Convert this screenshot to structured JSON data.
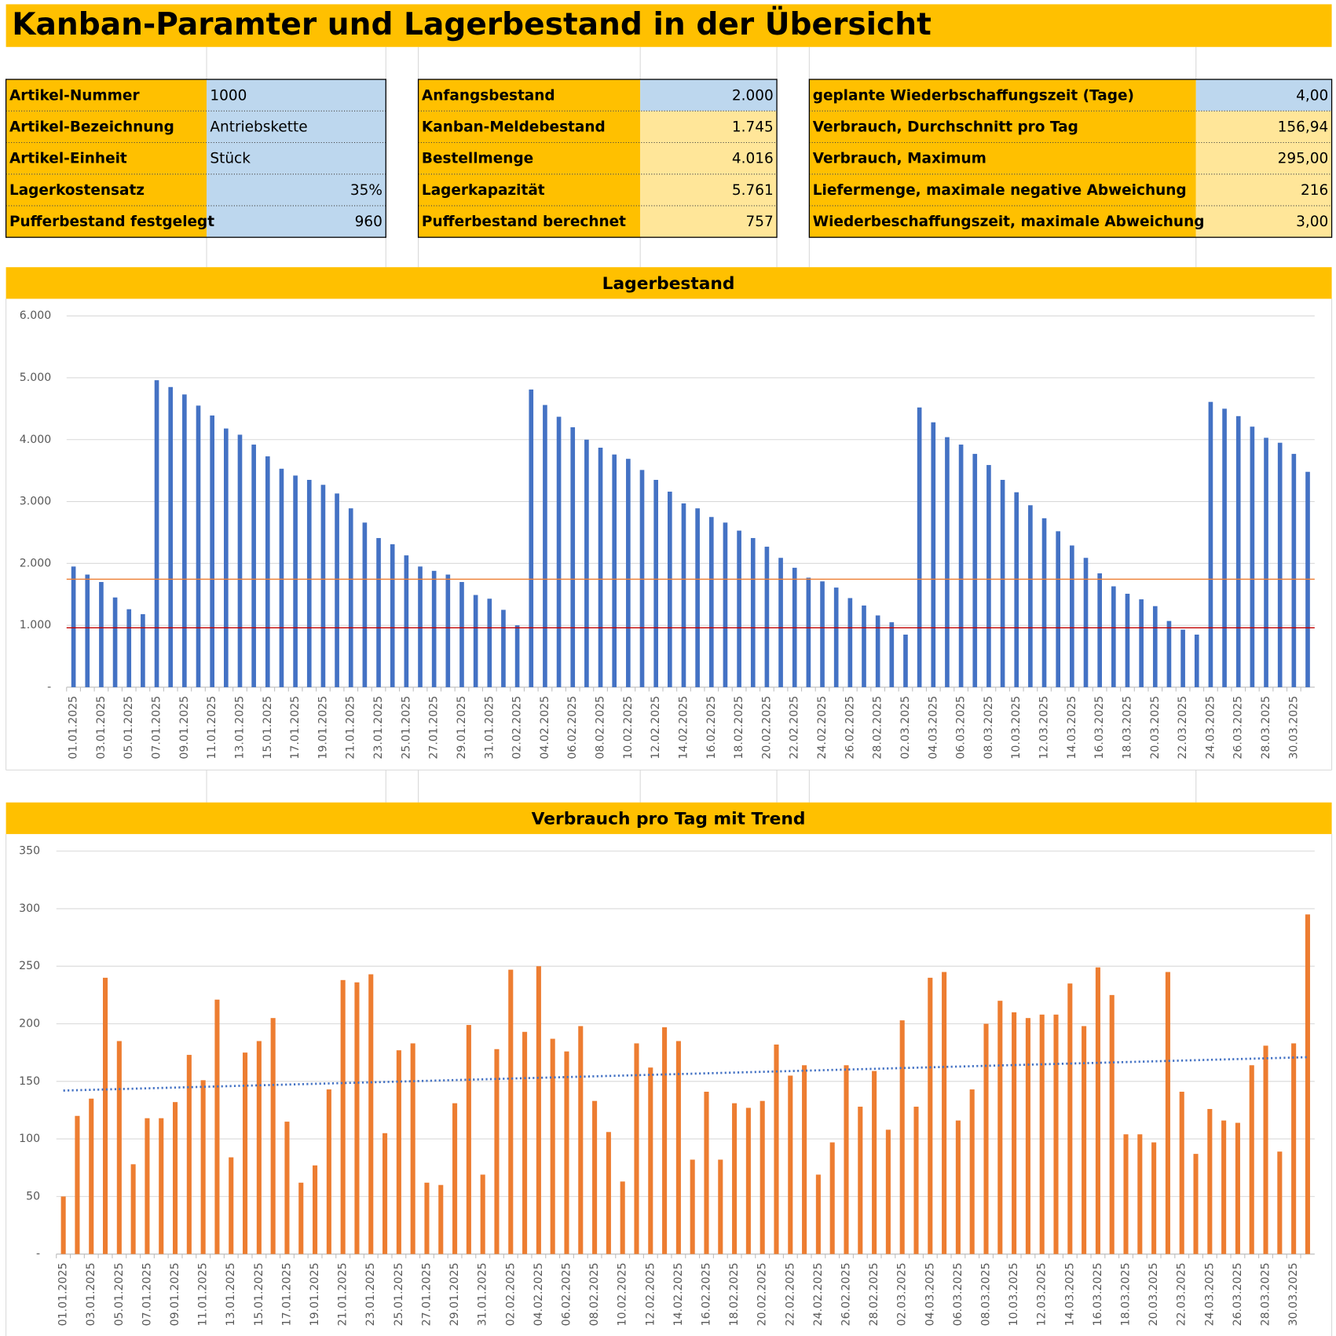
{
  "header": {
    "title": "Kanban-Paramter und Lagerbestand in der Übersicht"
  },
  "table": {
    "blocks": [
      {
        "rows": [
          {
            "label": "Artikel-Nummer",
            "value": "1000"
          },
          {
            "label": "Artikel-Bezeichnung",
            "value": "Antriebskette"
          },
          {
            "label": "Artikel-Einheit",
            "value": "Stück"
          },
          {
            "label": "Lagerkostensatz",
            "value": "35%"
          },
          {
            "label": "Pufferbestand festgelegt",
            "value": "960"
          }
        ]
      },
      {
        "rows": [
          {
            "label": "Anfangsbestand",
            "value": "2.000"
          },
          {
            "label": "Kanban-Meldebestand",
            "value": "1.745"
          },
          {
            "label": "Bestellmenge",
            "value": "4.016"
          },
          {
            "label": "Lagerkapazität",
            "value": "5.761"
          },
          {
            "label": "Pufferbestand berechnet",
            "value": "757"
          }
        ]
      },
      {
        "rows": [
          {
            "label": "geplante Wiederbschaffungszeit (Tage)",
            "value": "4,00"
          },
          {
            "label": "Verbrauch, Durchschnitt pro Tag",
            "value": "156,94"
          },
          {
            "label": "Verbrauch, Maximum",
            "value": "295,00"
          },
          {
            "label": "Liefermenge, maximale negative Abweichung",
            "value": "216"
          },
          {
            "label": "Wiederbeschaffungszeit, maximale Abweichung",
            "value": "3,00"
          }
        ]
      }
    ]
  },
  "chart_data": [
    {
      "type": "bar",
      "title": "Lagerbestand",
      "color": "#4472c4",
      "categories": [
        "01.01.2025",
        null,
        "03.01.2025",
        null,
        "05.01.2025",
        null,
        "07.01.2025",
        null,
        "09.01.2025",
        null,
        "11.01.2025",
        null,
        "13.01.2025",
        null,
        "15.01.2025",
        null,
        "17.01.2025",
        null,
        "19.01.2025",
        null,
        "21.01.2025",
        null,
        "23.01.2025",
        null,
        "25.01.2025",
        null,
        "27.01.2025",
        null,
        "29.01.2025",
        null,
        "31.01.2025",
        null,
        "02.02.2025",
        null,
        "04.02.2025",
        null,
        "06.02.2025",
        null,
        "08.02.2025",
        null,
        "10.02.2025",
        null,
        "12.02.2025",
        null,
        "14.02.2025",
        null,
        "16.02.2025",
        null,
        "18.02.2025",
        null,
        "20.02.2025",
        null,
        "22.02.2025",
        null,
        "24.02.2025",
        null,
        "26.02.2025",
        null,
        "28.02.2025",
        null,
        "02.03.2025",
        null,
        "04.03.2025",
        null,
        "06.03.2025",
        null,
        "08.03.2025",
        null,
        "10.03.2025",
        null,
        "12.03.2025",
        null,
        "14.03.2025",
        null,
        "16.03.2025",
        null,
        "18.03.2025",
        null,
        "20.03.2025",
        null,
        "22.03.2025",
        null,
        "24.03.2025",
        null,
        "26.03.2025",
        null,
        "28.03.2025",
        null,
        "30.03.2025",
        null
      ],
      "values": [
        1950,
        1820,
        1700,
        1450,
        1260,
        1180,
        4960,
        4850,
        4730,
        4550,
        4390,
        4180,
        4080,
        3920,
        3730,
        3530,
        3420,
        3350,
        3270,
        3130,
        2890,
        2660,
        2410,
        2310,
        2130,
        1950,
        1880,
        1820,
        1700,
        1490,
        1430,
        1250,
        1000,
        4810,
        4560,
        4370,
        4200,
        4000,
        3870,
        3760,
        3690,
        3510,
        3350,
        3160,
        2970,
        2890,
        2750,
        2660,
        2530,
        2410,
        2270,
        2090,
        1930,
        1770,
        1710,
        1610,
        1440,
        1320,
        1160,
        1050,
        850,
        4520,
        4280,
        4040,
        3920,
        3770,
        3590,
        3350,
        3150,
        2940,
        2730,
        2520,
        2290,
        2090,
        1840,
        1630,
        1510,
        1420,
        1310,
        1070,
        930,
        850,
        4610,
        4500,
        4380,
        4210,
        4030,
        3950,
        3770,
        3480
      ],
      "ylim": [
        0,
        6000
      ],
      "yticks": [
        {
          "value": 0,
          "label": "-"
        },
        {
          "value": 1000,
          "label": "1.000"
        },
        {
          "value": 2000,
          "label": "2.000"
        },
        {
          "value": 3000,
          "label": "3.000"
        },
        {
          "value": 4000,
          "label": "4.000"
        },
        {
          "value": 5000,
          "label": "5.000"
        },
        {
          "value": 6000,
          "label": "6.000"
        }
      ],
      "grid": true,
      "lines": [
        {
          "value": 1745,
          "color": "#ed7d31"
        },
        {
          "value": 960,
          "color": "#c00000"
        }
      ]
    },
    {
      "type": "bar",
      "title": "Verbrauch pro Tag mit Trend",
      "color": "#ed7d31",
      "categories": [
        "01.01.2025",
        null,
        "03.01.2025",
        null,
        "05.01.2025",
        null,
        "07.01.2025",
        null,
        "09.01.2025",
        null,
        "11.01.2025",
        null,
        "13.01.2025",
        null,
        "15.01.2025",
        null,
        "17.01.2025",
        null,
        "19.01.2025",
        null,
        "21.01.2025",
        null,
        "23.01.2025",
        null,
        "25.01.2025",
        null,
        "27.01.2025",
        null,
        "29.01.2025",
        null,
        "31.01.2025",
        null,
        "02.02.2025",
        null,
        "04.02.2025",
        null,
        "06.02.2025",
        null,
        "08.02.2025",
        null,
        "10.02.2025",
        null,
        "12.02.2025",
        null,
        "14.02.2025",
        null,
        "16.02.2025",
        null,
        "18.02.2025",
        null,
        "20.02.2025",
        null,
        "22.02.2025",
        null,
        "24.02.2025",
        null,
        "26.02.2025",
        null,
        "28.02.2025",
        null,
        "02.03.2025",
        null,
        "04.03.2025",
        null,
        "06.03.2025",
        null,
        "08.03.2025",
        null,
        "10.03.2025",
        null,
        "12.03.2025",
        null,
        "14.03.2025",
        null,
        "16.03.2025",
        null,
        "18.03.2025",
        null,
        "20.03.2025",
        null,
        "22.03.2025",
        null,
        "24.03.2025",
        null,
        "26.03.2025",
        null,
        "28.03.2025",
        null,
        "30.03.2025",
        null
      ],
      "values": [
        50,
        120,
        135,
        240,
        185,
        78,
        118,
        118,
        132,
        173,
        151,
        221,
        84,
        175,
        185,
        205,
        115,
        62,
        77,
        143,
        238,
        236,
        243,
        105,
        177,
        183,
        62,
        60,
        131,
        199,
        69,
        178,
        247,
        193,
        250,
        187,
        176,
        198,
        133,
        106,
        63,
        183,
        162,
        197,
        185,
        82,
        141,
        82,
        131,
        127,
        133,
        182,
        155,
        164,
        69,
        97,
        164,
        128,
        159,
        108,
        203,
        128,
        240,
        245,
        116,
        143,
        200,
        220,
        210,
        205,
        208,
        208,
        235,
        198,
        249,
        225,
        104,
        104,
        97,
        245,
        141,
        87,
        126,
        116,
        114,
        164,
        181,
        89,
        183,
        295
      ],
      "ylim": [
        0,
        350
      ],
      "yticks": [
        {
          "value": 0,
          "label": "-"
        },
        50,
        100,
        150,
        200,
        250,
        300,
        350
      ],
      "grid": true,
      "trend": {
        "values": [
          142,
          171
        ],
        "color": "#4472c4"
      }
    }
  ]
}
